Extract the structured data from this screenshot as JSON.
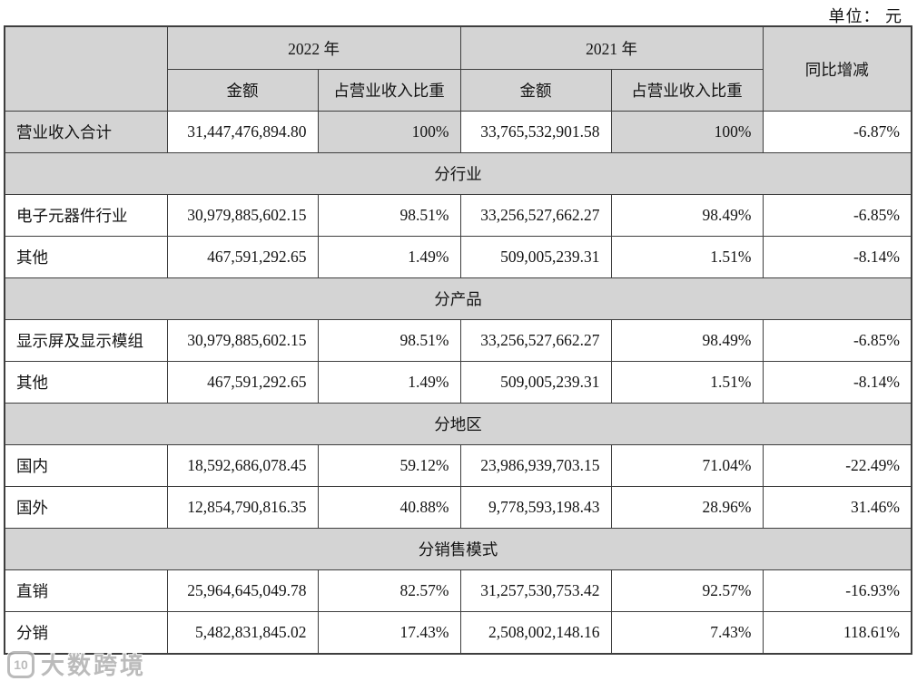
{
  "unit_label": "单位： 元",
  "table": {
    "header": {
      "year_2022": "2022 年",
      "year_2021": "2021 年",
      "amount": "金额",
      "ratio": "占营业收入比重",
      "yoy": "同比增减"
    },
    "rows": [
      {
        "type": "data",
        "shaded": true,
        "label": "营业收入合计",
        "a2022": "31,447,476,894.80",
        "r2022": "100%",
        "a2021": "33,765,532,901.58",
        "r2021": "100%",
        "yoy": "-6.87%"
      },
      {
        "type": "section",
        "label": "分行业"
      },
      {
        "type": "data",
        "label": "电子元器件行业",
        "a2022": "30,979,885,602.15",
        "r2022": "98.51%",
        "a2021": "33,256,527,662.27",
        "r2021": "98.49%",
        "yoy": "-6.85%"
      },
      {
        "type": "data",
        "label": "其他",
        "a2022": "467,591,292.65",
        "r2022": "1.49%",
        "a2021": "509,005,239.31",
        "r2021": "1.51%",
        "yoy": "-8.14%"
      },
      {
        "type": "section",
        "label": "分产品"
      },
      {
        "type": "data",
        "label": "显示屏及显示模组",
        "a2022": "30,979,885,602.15",
        "r2022": "98.51%",
        "a2021": "33,256,527,662.27",
        "r2021": "98.49%",
        "yoy": "-6.85%"
      },
      {
        "type": "data",
        "label": "其他",
        "a2022": "467,591,292.65",
        "r2022": "1.49%",
        "a2021": "509,005,239.31",
        "r2021": "1.51%",
        "yoy": "-8.14%"
      },
      {
        "type": "section",
        "label": "分地区"
      },
      {
        "type": "data",
        "label": "国内",
        "a2022": "18,592,686,078.45",
        "r2022": "59.12%",
        "a2021": "23,986,939,703.15",
        "r2021": "71.04%",
        "yoy": "-22.49%"
      },
      {
        "type": "data",
        "label": "国外",
        "a2022": "12,854,790,816.35",
        "r2022": "40.88%",
        "a2021": "9,778,593,198.43",
        "r2021": "28.96%",
        "yoy": "31.46%"
      },
      {
        "type": "section",
        "label": "分销售模式"
      },
      {
        "type": "data",
        "label": "直销",
        "a2022": "25,964,645,049.78",
        "r2022": "82.57%",
        "a2021": "31,257,530,753.42",
        "r2021": "92.57%",
        "yoy": "-16.93%"
      },
      {
        "type": "data",
        "label": "分销",
        "a2022": "5,482,831,845.02",
        "r2022": "17.43%",
        "a2021": "2,508,002,148.16",
        "r2021": "7.43%",
        "yoy": "118.61%"
      }
    ]
  },
  "watermark": {
    "logo_text": "10",
    "text": "大数跨境"
  },
  "colors": {
    "shaded_bg": "#d4d4d4",
    "border": "#3e3e3e",
    "text": "#141414"
  }
}
